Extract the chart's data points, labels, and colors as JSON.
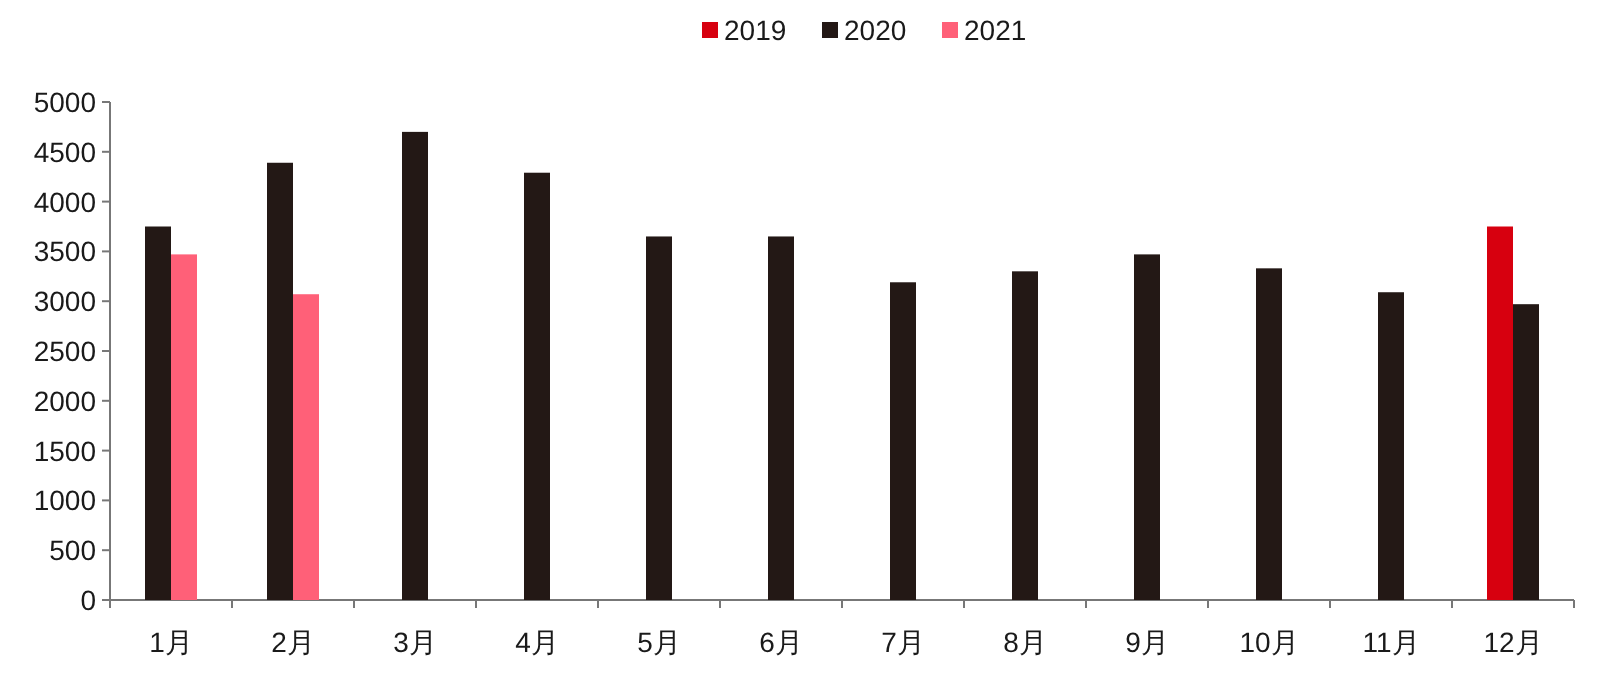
{
  "chart_data": {
    "type": "bar",
    "categories": [
      "1月",
      "2月",
      "3月",
      "4月",
      "5月",
      "6月",
      "7月",
      "8月",
      "9月",
      "10月",
      "11月",
      "12月"
    ],
    "series": [
      {
        "name": "2019",
        "color": "#d7000f",
        "values": [
          null,
          null,
          null,
          null,
          null,
          null,
          null,
          null,
          null,
          null,
          null,
          3750
        ]
      },
      {
        "name": "2020",
        "color": "#231815",
        "values": [
          3750,
          4390,
          4700,
          4290,
          3650,
          3650,
          3190,
          3300,
          3470,
          3330,
          3090,
          2970
        ]
      },
      {
        "name": "2021",
        "color": "#ff6078",
        "values": [
          3470,
          3070,
          null,
          null,
          null,
          null,
          null,
          null,
          null,
          null,
          null,
          null
        ]
      }
    ],
    "ylim": [
      0,
      5000
    ],
    "yticks": [
      0,
      500,
      1000,
      1500,
      2000,
      2500,
      3000,
      3500,
      4000,
      4500,
      5000
    ],
    "grid": false,
    "legend": "top"
  }
}
